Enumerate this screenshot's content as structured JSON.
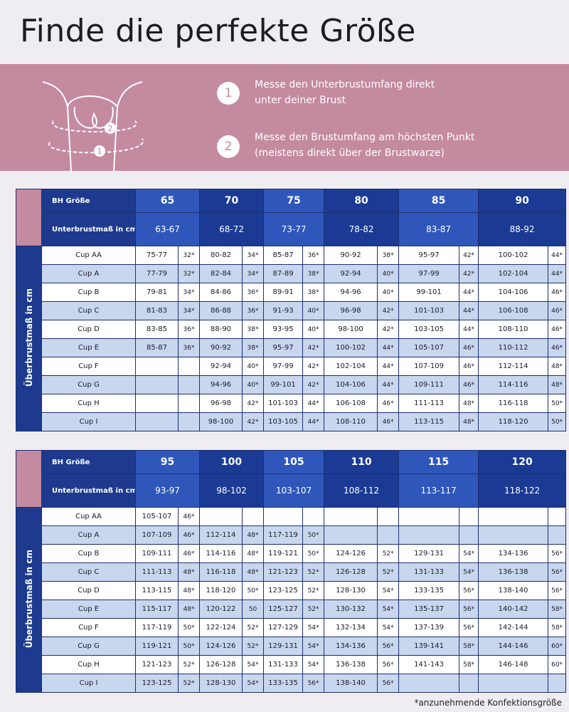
{
  "header": {
    "title": "Finde die perfekte Größe"
  },
  "steps": [
    {
      "number": "1",
      "lines": [
        "Messe den Unterbrustumfang direkt",
        "unter deiner Brust"
      ]
    },
    {
      "number": "2",
      "lines": [
        "Messe den Brustumfang am höchsten Punkt",
        "(meistens direkt über der Brustwarze)"
      ]
    }
  ],
  "tables": [
    {
      "size_label": "BH Größe",
      "underbust_label": "Unterbrustmaß in cm",
      "side_label": "Überbrustmaß in cm",
      "sizes": [
        "65",
        "70",
        "75",
        "80",
        "85",
        "90"
      ],
      "underbust": [
        "63-67",
        "68-72",
        "73-77",
        "78-82",
        "83-87",
        "88-92"
      ],
      "rows": [
        {
          "cup": "Cup AA",
          "cells": [
            [
              "75-77",
              "32*"
            ],
            [
              "80-82",
              "34*"
            ],
            [
              "85-87",
              "36*"
            ],
            [
              "90-92",
              "38*"
            ],
            [
              "95-97",
              "42*"
            ],
            [
              "100-102",
              "44*"
            ]
          ]
        },
        {
          "cup": "Cup A",
          "cells": [
            [
              "77-79",
              "32*"
            ],
            [
              "82-84",
              "34*"
            ],
            [
              "87-89",
              "38*"
            ],
            [
              "92-94",
              "40*"
            ],
            [
              "97-99",
              "42*"
            ],
            [
              "102-104",
              "44*"
            ]
          ]
        },
        {
          "cup": "Cup B",
          "cells": [
            [
              "79-81",
              "34*"
            ],
            [
              "84-86",
              "36*"
            ],
            [
              "89-91",
              "38*"
            ],
            [
              "94-96",
              "40*"
            ],
            [
              "99-101",
              "44*"
            ],
            [
              "104-106",
              "46*"
            ]
          ]
        },
        {
          "cup": "Cup C",
          "cells": [
            [
              "81-83",
              "34*"
            ],
            [
              "86-88",
              "36*"
            ],
            [
              "91-93",
              "40*"
            ],
            [
              "96-98",
              "42*"
            ],
            [
              "101-103",
              "44*"
            ],
            [
              "106-108",
              "46*"
            ]
          ]
        },
        {
          "cup": "Cup D",
          "cells": [
            [
              "83-85",
              "36*"
            ],
            [
              "88-90",
              "38*"
            ],
            [
              "93-95",
              "40*"
            ],
            [
              "98-100",
              "42*"
            ],
            [
              "103-105",
              "44*"
            ],
            [
              "108-110",
              "46*"
            ]
          ]
        },
        {
          "cup": "Cup E",
          "cells": [
            [
              "85-87",
              "36*"
            ],
            [
              "90-92",
              "38*"
            ],
            [
              "95-97",
              "42*"
            ],
            [
              "100-102",
              "44*"
            ],
            [
              "105-107",
              "46*"
            ],
            [
              "110-112",
              "46*"
            ]
          ]
        },
        {
          "cup": "Cup F",
          "cells": [
            null,
            [
              "92-94",
              "40*"
            ],
            [
              "97-99",
              "42*"
            ],
            [
              "102-104",
              "44*"
            ],
            [
              "107-109",
              "46*"
            ],
            [
              "112-114",
              "48*"
            ]
          ]
        },
        {
          "cup": "Cup G",
          "cells": [
            null,
            [
              "94-96",
              "40*"
            ],
            [
              "99-101",
              "42*"
            ],
            [
              "104-106",
              "44*"
            ],
            [
              "109-111",
              "46*"
            ],
            [
              "114-116",
              "48*"
            ]
          ]
        },
        {
          "cup": "Cup H",
          "cells": [
            null,
            [
              "96-98",
              "42*"
            ],
            [
              "101-103",
              "44*"
            ],
            [
              "106-108",
              "46*"
            ],
            [
              "111-113",
              "48*"
            ],
            [
              "116-118",
              "50*"
            ]
          ]
        },
        {
          "cup": "Cup I",
          "cells": [
            null,
            [
              "98-100",
              "42*"
            ],
            [
              "103-105",
              "44*"
            ],
            [
              "108-110",
              "46*"
            ],
            [
              "113-115",
              "48*"
            ],
            [
              "118-120",
              "50*"
            ]
          ]
        }
      ]
    },
    {
      "size_label": "BH Größe",
      "underbust_label": "Unterbrustmaß in cm",
      "side_label": "Überbrustmaß in cm",
      "sizes": [
        "95",
        "100",
        "105",
        "110",
        "115",
        "120"
      ],
      "underbust": [
        "93-97",
        "98-102",
        "103-107",
        "108-112",
        "113-117",
        "118-122"
      ],
      "rows": [
        {
          "cup": "Cup AA",
          "cells": [
            [
              "105-107",
              "46*"
            ],
            null,
            null,
            null,
            null,
            null
          ]
        },
        {
          "cup": "Cup A",
          "cells": [
            [
              "107-109",
              "46*"
            ],
            [
              "112-114",
              "48*"
            ],
            [
              "117-119",
              "50*"
            ],
            null,
            null,
            null
          ]
        },
        {
          "cup": "Cup B",
          "cells": [
            [
              "109-111",
              "46*"
            ],
            [
              "114-116",
              "48*"
            ],
            [
              "119-121",
              "50*"
            ],
            [
              "124-126",
              "52*"
            ],
            [
              "129-131",
              "54*"
            ],
            [
              "134-136",
              "56*"
            ]
          ]
        },
        {
          "cup": "Cup C",
          "cells": [
            [
              "111-113",
              "48*"
            ],
            [
              "116-118",
              "48*"
            ],
            [
              "121-123",
              "52*"
            ],
            [
              "126-128",
              "52*"
            ],
            [
              "131-133",
              "54*"
            ],
            [
              "136-138",
              "56*"
            ]
          ]
        },
        {
          "cup": "Cup D",
          "cells": [
            [
              "113-115",
              "48*"
            ],
            [
              "118-120",
              "50*"
            ],
            [
              "123-125",
              "52*"
            ],
            [
              "128-130",
              "54*"
            ],
            [
              "133-135",
              "56*"
            ],
            [
              "138-140",
              "56*"
            ]
          ]
        },
        {
          "cup": "Cup E",
          "cells": [
            [
              "115-117",
              "48*"
            ],
            [
              "120-122",
              "50"
            ],
            [
              "125-127",
              "52*"
            ],
            [
              "130-132",
              "54*"
            ],
            [
              "135-137",
              "56*"
            ],
            [
              "140-142",
              "58*"
            ]
          ]
        },
        {
          "cup": "Cup F",
          "cells": [
            [
              "117-119",
              "50*"
            ],
            [
              "122-124",
              "52*"
            ],
            [
              "127-129",
              "54*"
            ],
            [
              "132-134",
              "54*"
            ],
            [
              "137-139",
              "56*"
            ],
            [
              "142-144",
              "58*"
            ]
          ]
        },
        {
          "cup": "Cup G",
          "cells": [
            [
              "119-121",
              "50*"
            ],
            [
              "124-126",
              "52*"
            ],
            [
              "129-131",
              "54*"
            ],
            [
              "134-136",
              "56*"
            ],
            [
              "139-141",
              "58*"
            ],
            [
              "144-146",
              "60*"
            ]
          ]
        },
        {
          "cup": "Cup H",
          "cells": [
            [
              "121-123",
              "52*"
            ],
            [
              "126-128",
              "54*"
            ],
            [
              "131-133",
              "54*"
            ],
            [
              "136-138",
              "56*"
            ],
            [
              "141-143",
              "58*"
            ],
            [
              "146-148",
              "60*"
            ]
          ]
        },
        {
          "cup": "Cup I",
          "cells": [
            [
              "123-125",
              "52*"
            ],
            [
              "128-130",
              "54*"
            ],
            [
              "133-135",
              "56*"
            ],
            [
              "138-140",
              "56*"
            ],
            null,
            null
          ]
        }
      ]
    }
  ],
  "footnote": "*anzunehmende Konfektionsgröße"
}
